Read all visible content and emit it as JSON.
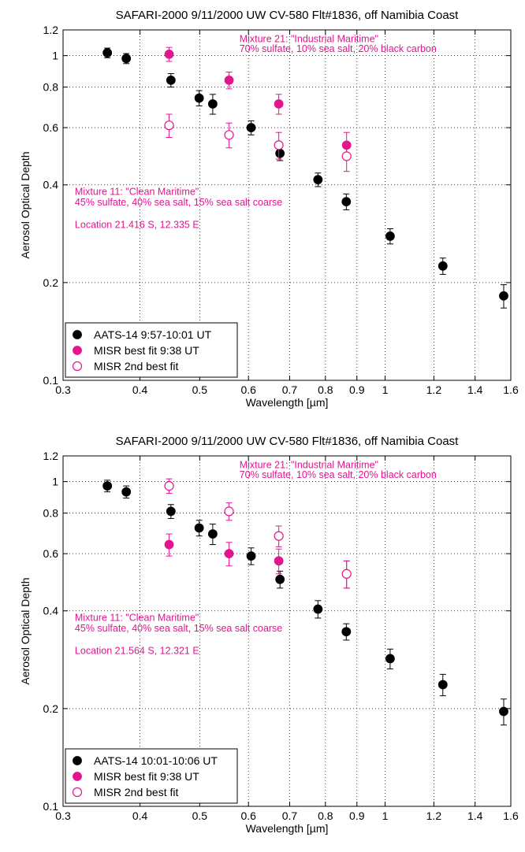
{
  "chart_data": [
    {
      "type": "scatter",
      "title": "SAFARI-2000  9/11/2000 UW CV-580 Flt#1836, off Namibia Coast",
      "xlabel": "Wavelength [µm]",
      "ylabel": "Aerosol Optical Depth",
      "x_scale": "log",
      "y_scale": "log",
      "xlim": [
        0.3,
        1.6
      ],
      "ylim": [
        0.1,
        1.2
      ],
      "x_ticks": [
        0.3,
        0.4,
        0.5,
        0.6,
        0.7,
        0.8,
        0.9,
        1,
        1.2,
        1.4,
        1.6
      ],
      "x_tick_labels": [
        "0.3",
        "0.4",
        "0.5",
        "0.6",
        "0.7",
        "0.8",
        "0.9",
        "1",
        "1.2",
        "1.4",
        "1.6"
      ],
      "y_ticks": [
        0.1,
        0.2,
        0.4,
        0.6,
        0.8,
        1,
        1.2
      ],
      "y_tick_labels": [
        "0.1",
        "0.2",
        "0.4",
        "0.6",
        "0.8",
        "1",
        "1.2"
      ],
      "grid": true,
      "legend_position": "bottom-left",
      "series": [
        {
          "name": "AATS-14 9:57-10:01 UT",
          "marker": "filled",
          "color": "#000000",
          "x": [
            0.354,
            0.38,
            0.449,
            0.499,
            0.525,
            0.606,
            0.675,
            0.778,
            0.865,
            1.019,
            1.241,
            1.558
          ],
          "y": [
            1.02,
            0.98,
            0.84,
            0.74,
            0.71,
            0.6,
            0.5,
            0.415,
            0.355,
            0.278,
            0.225,
            0.182
          ],
          "err": [
            0.035,
            0.035,
            0.04,
            0.04,
            0.05,
            0.03,
            0.025,
            0.02,
            0.02,
            0.015,
            0.013,
            0.015
          ]
        },
        {
          "name": "MISR best fit     9:38 UT",
          "marker": "filled",
          "color": "#e2158f",
          "x": [
            0.446,
            0.558,
            0.672,
            0.866
          ],
          "y": [
            1.01,
            0.84,
            0.71,
            0.53
          ],
          "err": [
            0.05,
            0.05,
            0.05,
            0.05
          ]
        },
        {
          "name": "MISR 2nd best fit",
          "marker": "open",
          "color": "#e2158f",
          "x": [
            0.446,
            0.558,
            0.672,
            0.866
          ],
          "y": [
            0.61,
            0.57,
            0.53,
            0.49
          ],
          "err": [
            0.05,
            0.05,
            0.05,
            0.05
          ]
        }
      ],
      "annotations": [
        {
          "text": "Mixture 21: \"Industrial Maritime\"",
          "x": 0.58,
          "y": 1.1
        },
        {
          "text": "70% sulfate, 10% sea salt, 20% black carbon",
          "x": 0.58,
          "y": 1.025
        },
        {
          "text": "Mixture 11: \"Clean Maritime\"",
          "x": 0.3135,
          "y": 0.372
        },
        {
          "text": "45% sulfate, 40% sea salt, 15% sea salt coarse",
          "x": 0.3135,
          "y": 0.345
        },
        {
          "text": "Location  21.416 S, 12.335 E",
          "x": 0.3135,
          "y": 0.295
        }
      ]
    },
    {
      "type": "scatter",
      "title": "SAFARI-2000  9/11/2000 UW CV-580 Flt#1836, off Namibia Coast",
      "xlabel": "Wavelength [µm]",
      "ylabel": "Aerosol Optical Depth",
      "x_scale": "log",
      "y_scale": "log",
      "xlim": [
        0.3,
        1.6
      ],
      "ylim": [
        0.1,
        1.2
      ],
      "x_ticks": [
        0.3,
        0.4,
        0.5,
        0.6,
        0.7,
        0.8,
        0.9,
        1,
        1.2,
        1.4,
        1.6
      ],
      "x_tick_labels": [
        "0.3",
        "0.4",
        "0.5",
        "0.6",
        "0.7",
        "0.8",
        "0.9",
        "1",
        "1.2",
        "1.4",
        "1.6"
      ],
      "y_ticks": [
        0.1,
        0.2,
        0.4,
        0.6,
        0.8,
        1,
        1.2
      ],
      "y_tick_labels": [
        "0.1",
        "0.2",
        "0.4",
        "0.6",
        "0.8",
        "1",
        "1.2"
      ],
      "grid": true,
      "legend_position": "bottom-left",
      "series": [
        {
          "name": "AATS-14 10:01-10:06 UT",
          "marker": "filled",
          "color": "#000000",
          "x": [
            0.354,
            0.38,
            0.449,
            0.499,
            0.525,
            0.606,
            0.675,
            0.778,
            0.865,
            1.019,
            1.241,
            1.558
          ],
          "y": [
            0.97,
            0.93,
            0.81,
            0.72,
            0.69,
            0.59,
            0.5,
            0.405,
            0.345,
            0.285,
            0.237,
            0.196
          ],
          "err": [
            0.04,
            0.04,
            0.04,
            0.04,
            0.05,
            0.035,
            0.03,
            0.025,
            0.02,
            0.02,
            0.018,
            0.018
          ]
        },
        {
          "name": "MISR best fit     9:38 UT",
          "marker": "filled",
          "color": "#e2158f",
          "x": [
            0.446,
            0.558,
            0.672,
            0.866
          ],
          "y": [
            0.64,
            0.6,
            0.57,
            0.52
          ],
          "err": [
            0.05,
            0.05,
            0.05,
            0.05
          ]
        },
        {
          "name": "MISR 2nd best fit",
          "marker": "open",
          "color": "#e2158f",
          "x": [
            0.446,
            0.558,
            0.672,
            0.866
          ],
          "y": [
            0.97,
            0.81,
            0.68,
            0.52
          ],
          "err": [
            0.05,
            0.05,
            0.05,
            0.05
          ]
        }
      ],
      "annotations": [
        {
          "text": "Mixture 21: \"Industrial Maritime\"",
          "x": 0.58,
          "y": 1.1
        },
        {
          "text": "70% sulfate, 10% sea salt, 20% black carbon",
          "x": 0.58,
          "y": 1.025
        },
        {
          "text": "Mixture 11: \"Clean Maritime\"",
          "x": 0.3135,
          "y": 0.372
        },
        {
          "text": "45% sulfate, 40% sea salt, 15% sea salt coarse",
          "x": 0.3135,
          "y": 0.345
        },
        {
          "text": "Location  21.564 S, 12.321 E",
          "x": 0.3135,
          "y": 0.295
        }
      ]
    }
  ]
}
